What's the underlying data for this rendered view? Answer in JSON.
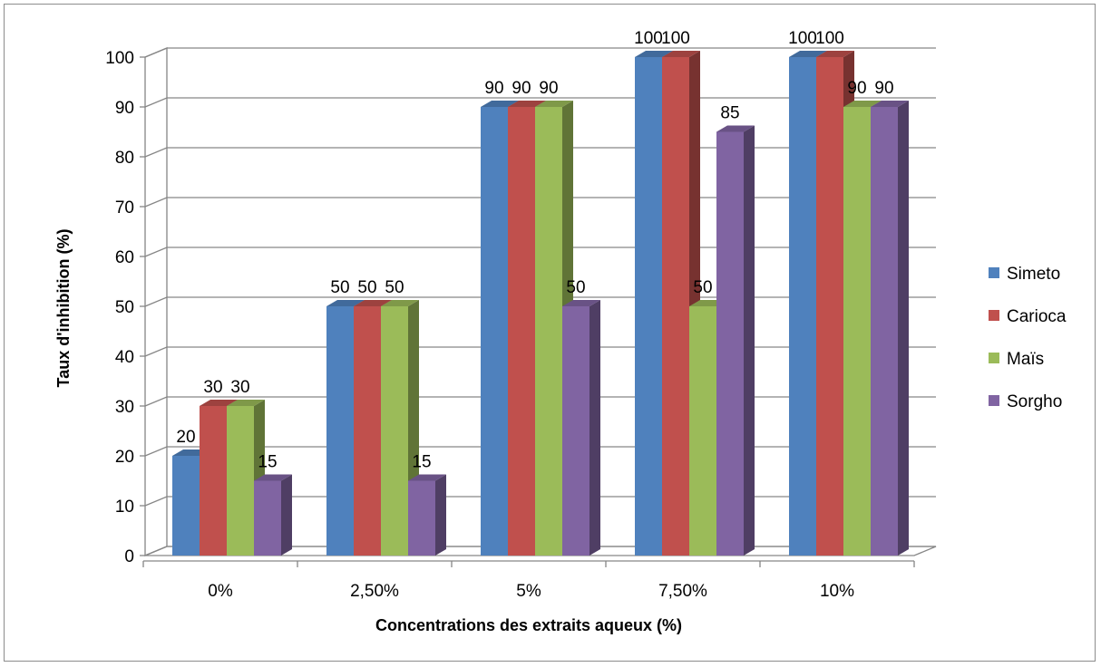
{
  "chart_data": {
    "type": "bar",
    "style": "3d-clustered-column",
    "categories": [
      "0%",
      "2,50%",
      "5%",
      "7,50%",
      "10%"
    ],
    "series": [
      {
        "name": "Simeto",
        "color": "#4f81bd",
        "values": [
          20,
          50,
          90,
          100,
          100
        ]
      },
      {
        "name": "Carioca",
        "color": "#c0504d",
        "values": [
          30,
          50,
          90,
          100,
          100
        ]
      },
      {
        "name": "Maïs",
        "color": "#9bbb59",
        "values": [
          30,
          50,
          90,
          50,
          90
        ]
      },
      {
        "name": "Sorgho",
        "color": "#8064a2",
        "values": [
          15,
          15,
          50,
          85,
          90
        ]
      }
    ],
    "xlabel": "Concentrations des extraits aqueux  (%)",
    "ylabel": "Taux d'inhibition (%)",
    "ylim": [
      0,
      100
    ],
    "yticks": [
      "0",
      "10",
      "20",
      "30",
      "40",
      "50",
      "60",
      "70",
      "80",
      "90",
      "100"
    ],
    "grid": true,
    "legend": "right",
    "data_labels": true
  }
}
